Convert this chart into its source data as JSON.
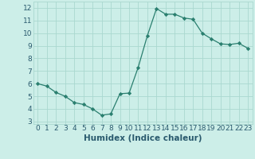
{
  "x": [
    0,
    1,
    2,
    3,
    4,
    5,
    6,
    7,
    8,
    9,
    10,
    11,
    12,
    13,
    14,
    15,
    16,
    17,
    18,
    19,
    20,
    21,
    22,
    23
  ],
  "y": [
    6.0,
    5.8,
    5.3,
    5.0,
    4.5,
    4.35,
    4.0,
    3.5,
    3.6,
    5.2,
    5.25,
    7.3,
    9.8,
    11.95,
    11.5,
    11.5,
    11.2,
    11.1,
    10.0,
    9.55,
    9.15,
    9.1,
    9.2,
    8.8
  ],
  "line_color": "#2a7f6f",
  "marker": "D",
  "marker_size": 2.2,
  "bg_color": "#cceee8",
  "grid_color": "#aad8d0",
  "xlabel": "Humidex (Indice chaleur)",
  "xlim": [
    -0.5,
    23.5
  ],
  "ylim": [
    2.8,
    12.5
  ],
  "yticks": [
    3,
    4,
    5,
    6,
    7,
    8,
    9,
    10,
    11,
    12
  ],
  "xticks": [
    0,
    1,
    2,
    3,
    4,
    5,
    6,
    7,
    8,
    9,
    10,
    11,
    12,
    13,
    14,
    15,
    16,
    17,
    18,
    19,
    20,
    21,
    22,
    23
  ],
  "font_color": "#2a5a6e",
  "xlabel_fontsize": 7.5,
  "tick_fontsize": 6.5
}
